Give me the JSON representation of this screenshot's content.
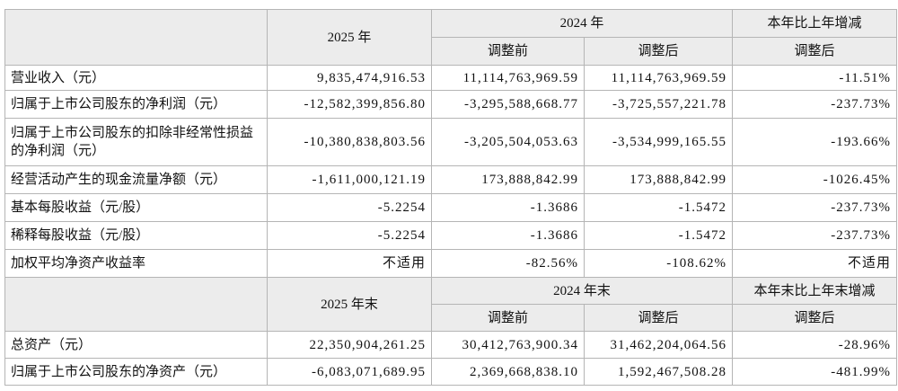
{
  "sections": [
    {
      "header": {
        "year": "2025 年",
        "group": "2024 年",
        "change": "本年比上年增减",
        "sub": [
          "调整前",
          "调整后",
          "调整后"
        ]
      },
      "rows": [
        [
          "营业收入（元）",
          "9,835,474,916.53",
          "11,114,763,969.59",
          "11,114,763,969.59",
          "-11.51%"
        ],
        [
          "归属于上市公司股东的净利润（元）",
          "-12,582,399,856.80",
          "-3,295,588,668.77",
          "-3,725,557,221.78",
          "-237.73%"
        ],
        [
          "归属于上市公司股东的扣除非经常性损益的净利润（元）",
          "-10,380,838,803.56",
          "-3,205,504,053.63",
          "-3,534,999,165.55",
          "-193.66%"
        ],
        [
          "经营活动产生的现金流量净额（元）",
          "-1,611,000,121.19",
          "173,888,842.99",
          "173,888,842.99",
          "-1026.45%"
        ],
        [
          "基本每股收益（元/股）",
          "-5.2254",
          "-1.3686",
          "-1.5472",
          "-237.73%"
        ],
        [
          "稀释每股收益（元/股）",
          "-5.2254",
          "-1.3686",
          "-1.5472",
          "-237.73%"
        ],
        [
          "加权平均净资产收益率",
          "不适用",
          "-82.56%",
          "-108.62%",
          "不适用"
        ]
      ]
    },
    {
      "header": {
        "year": "2025 年末",
        "group": "2024 年末",
        "change": "本年末比上年末增减",
        "sub": [
          "调整前",
          "调整后",
          "调整后"
        ]
      },
      "rows": [
        [
          "总资产（元）",
          "22,350,904,261.25",
          "30,412,763,900.34",
          "31,462,204,064.56",
          "-28.96%"
        ],
        [
          "归属于上市公司股东的净资产（元）",
          "-6,083,071,689.95",
          "2,369,668,838.10",
          "1,592,467,508.28",
          "-481.99%"
        ]
      ]
    }
  ]
}
